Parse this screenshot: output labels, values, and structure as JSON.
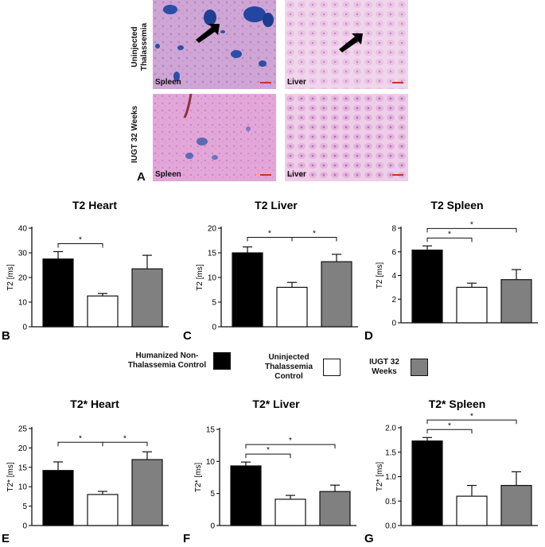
{
  "histology": {
    "row_labels": [
      "Uninjected Thalassemia",
      "IUGT 32 Weeks"
    ],
    "tissue_labels": [
      "Spleen",
      "Liver",
      "Spleen",
      "Liver"
    ],
    "panel_label": "A"
  },
  "legend": {
    "items": [
      {
        "label": "Humanized Non-Thalassemia Control",
        "color": "#000000"
      },
      {
        "label": "Uninjected Thalassemia Control",
        "color": "#ffffff"
      },
      {
        "label": "IUGT 32 Weeks",
        "color": "#808080"
      }
    ]
  },
  "colors": {
    "control": "#000000",
    "uninjected": "#ffffff",
    "iugt": "#808080",
    "stain_pink": "#e4a8d6",
    "stain_blue": "#2b4fa8"
  },
  "chart_data": [
    {
      "panel": "B",
      "type": "bar",
      "title": "T2 Heart",
      "ylabel": "T2 [ms]",
      "ylim": [
        0,
        40
      ],
      "yticks": [
        0,
        10,
        20,
        30,
        40
      ],
      "categories": [
        "Humanized Non-Thalassemia Control",
        "Uninjected Thalassemia Control",
        "IUGT 32 Weeks"
      ],
      "values": [
        27.5,
        12.5,
        23.5
      ],
      "errors": [
        3.0,
        1.0,
        5.5
      ],
      "significance": [
        {
          "from": 0,
          "to": 1,
          "label": "*"
        }
      ]
    },
    {
      "panel": "C",
      "type": "bar",
      "title": "T2 Liver",
      "ylabel": "T2 [ms]",
      "ylim": [
        0,
        20
      ],
      "yticks": [
        0,
        5,
        10,
        15,
        20
      ],
      "categories": [
        "Humanized Non-Thalassemia Control",
        "Uninjected Thalassemia Control",
        "IUGT 32 Weeks"
      ],
      "values": [
        15.0,
        8.0,
        13.2
      ],
      "errors": [
        1.2,
        1.0,
        1.5
      ],
      "significance": [
        {
          "from": 0,
          "to": 1,
          "label": "*"
        },
        {
          "from": 1,
          "to": 2,
          "label": "*"
        }
      ]
    },
    {
      "panel": "D",
      "type": "bar",
      "title": "T2 Spleen",
      "ylabel": "T2 [ms]",
      "ylim": [
        0,
        8
      ],
      "yticks": [
        0,
        2,
        4,
        6,
        8
      ],
      "categories": [
        "Humanized Non-Thalassemia Control",
        "Uninjected Thalassemia Control",
        "IUGT 32 Weeks"
      ],
      "values": [
        6.15,
        3.0,
        3.65
      ],
      "errors": [
        0.35,
        0.35,
        0.85
      ],
      "significance": [
        {
          "from": 0,
          "to": 1,
          "label": "*"
        },
        {
          "from": 0,
          "to": 2,
          "label": "*"
        }
      ]
    },
    {
      "panel": "E",
      "type": "bar",
      "title": "T2* Heart",
      "ylabel": "T2* [ms]",
      "ylim": [
        0,
        25
      ],
      "yticks": [
        0,
        5,
        10,
        15,
        20,
        25
      ],
      "categories": [
        "Humanized Non-Thalassemia Control",
        "Uninjected Thalassemia Control",
        "IUGT 32 Weeks"
      ],
      "values": [
        14.2,
        8.0,
        17.0
      ],
      "errors": [
        2.2,
        0.8,
        2.0
      ],
      "significance": [
        {
          "from": 0,
          "to": 1,
          "label": "*"
        },
        {
          "from": 1,
          "to": 2,
          "label": "*"
        }
      ]
    },
    {
      "panel": "F",
      "type": "bar",
      "title": "T2* Liver",
      "ylabel": "T2* [ms]",
      "ylim": [
        0,
        15
      ],
      "yticks": [
        0,
        5,
        10,
        15
      ],
      "categories": [
        "Humanized Non-Thalassemia Control",
        "Uninjected Thalassemia Control",
        "IUGT 32 Weeks"
      ],
      "values": [
        9.3,
        4.1,
        5.3
      ],
      "errors": [
        0.6,
        0.6,
        1.0
      ],
      "significance": [
        {
          "from": 0,
          "to": 1,
          "label": "*"
        },
        {
          "from": 0,
          "to": 2,
          "label": "*"
        }
      ]
    },
    {
      "panel": "G",
      "type": "bar",
      "title": "T2* Spleen",
      "ylabel": "T2* [ms]",
      "ylim": [
        0,
        2.0
      ],
      "yticks": [
        0.0,
        0.5,
        1.0,
        1.5,
        2.0
      ],
      "categories": [
        "Humanized Non-Thalassemia Control",
        "Uninjected Thalassemia Control",
        "IUGT 32 Weeks"
      ],
      "values": [
        1.73,
        0.6,
        0.82
      ],
      "errors": [
        0.07,
        0.22,
        0.28
      ],
      "significance": [
        {
          "from": 0,
          "to": 1,
          "label": "*"
        },
        {
          "from": 0,
          "to": 2,
          "label": "*"
        }
      ]
    }
  ]
}
